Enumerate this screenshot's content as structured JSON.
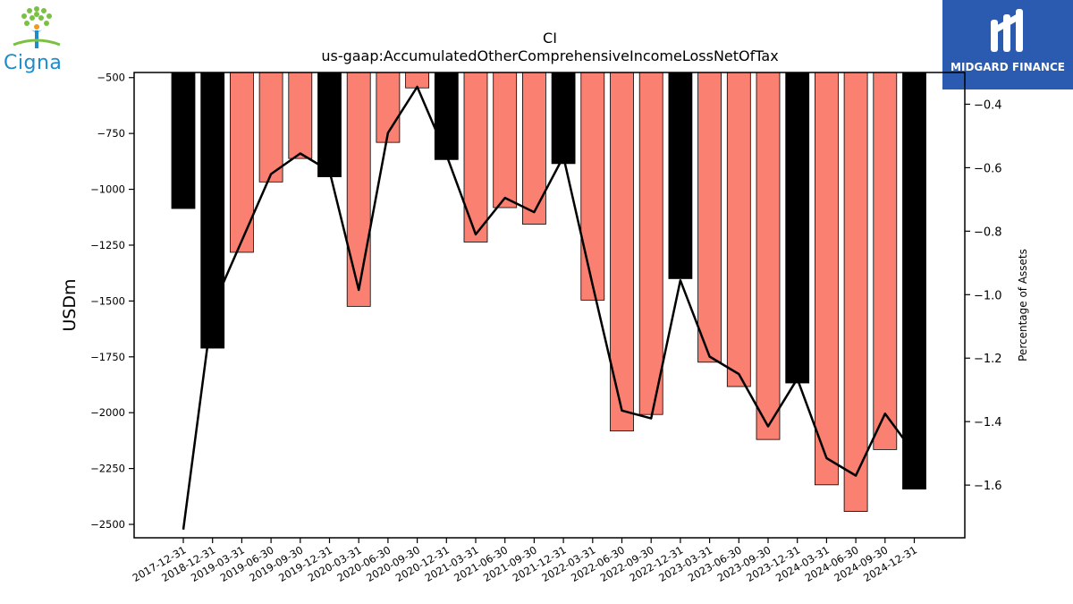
{
  "chart_data": {
    "type": "bar",
    "title": "CI",
    "subtitle": "us-gaap:AccumulatedOtherComprehensiveIncomeLossNetOfTax",
    "ylabel": "USDm",
    "ylabel_right": "Percentage of Assets",
    "ylim": [
      -2560,
      -477
    ],
    "ylim_right": [
      -1.766,
      -0.3
    ],
    "yticks": [
      -500,
      -750,
      -1000,
      -1250,
      -1500,
      -1750,
      -2000,
      -2250,
      -2500
    ],
    "yticks_right": [
      -0.4,
      -0.6,
      -0.8,
      -1.0,
      -1.2,
      -1.4,
      -1.6
    ],
    "categories": [
      "2017-12-31",
      "2018-12-31",
      "2019-03-31",
      "2019-06-30",
      "2019-09-30",
      "2019-12-31",
      "2020-03-31",
      "2020-06-30",
      "2020-09-30",
      "2020-12-31",
      "2021-03-31",
      "2021-06-30",
      "2021-09-30",
      "2021-12-31",
      "2022-03-31",
      "2022-06-30",
      "2022-09-30",
      "2022-12-31",
      "2023-03-31",
      "2023-06-30",
      "2023-09-30",
      "2023-12-31",
      "2024-03-31",
      "2024-06-30",
      "2024-09-30",
      "2024-12-31"
    ],
    "series": [
      {
        "type": "bar",
        "values": [
          -1086,
          -1711,
          -1282,
          -967,
          -862,
          -944,
          -1524,
          -790,
          -546,
          -867,
          -1236,
          -1082,
          -1156,
          -885,
          -1496,
          -2082,
          -2008,
          -1400,
          -1774,
          -1883,
          -2120,
          -1867,
          -2323,
          -2442,
          -2165,
          -2342
        ],
        "annual": [
          true,
          true,
          false,
          false,
          false,
          true,
          false,
          false,
          false,
          true,
          false,
          false,
          false,
          true,
          false,
          false,
          false,
          true,
          false,
          false,
          false,
          true,
          false,
          false,
          false,
          true
        ]
      },
      {
        "type": "line",
        "axis": "right",
        "values": [
          -1.74,
          -1.04,
          -0.83,
          -0.62,
          -0.555,
          -0.61,
          -0.985,
          -0.49,
          -0.345,
          -0.56,
          -0.81,
          -0.695,
          -0.74,
          -0.565,
          -0.97,
          -1.365,
          -1.39,
          -0.955,
          -1.195,
          -1.25,
          -1.415,
          -1.265,
          -1.515,
          -1.57,
          -1.375,
          -1.5
        ]
      }
    ],
    "colors": {
      "annual_bar": "#000000",
      "quarter_bar": "#fa8072",
      "line": "#000000"
    },
    "grid": false
  },
  "logos": {
    "left": {
      "text": "Cigna",
      "icon": "tree-of-people-icon",
      "color": "#1d8ccc"
    },
    "right": {
      "text": "MIDGARD FINANCE",
      "icon": "midgard-mark-icon",
      "background": "#2b5bb0"
    }
  }
}
